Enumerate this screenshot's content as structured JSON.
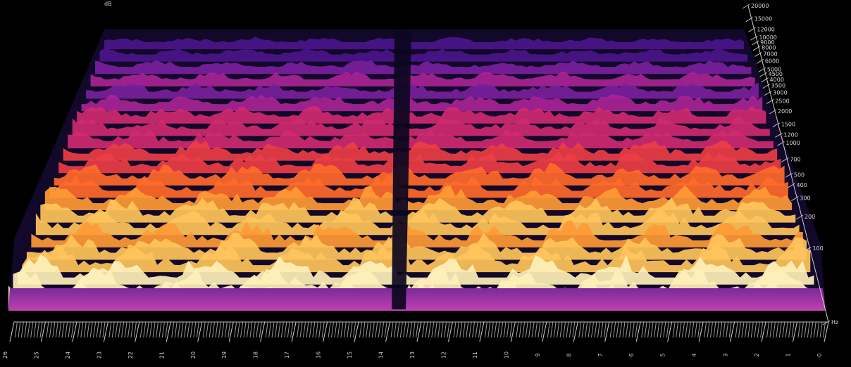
{
  "corner_mark": "dB",
  "chart_data": {
    "type": "heatmap",
    "title": "",
    "xlabel": "",
    "ylabel": "",
    "x_axis": {
      "direction": "decreasing left to right",
      "range": [
        0,
        26
      ],
      "tick_labels": [
        "26",
        "25",
        "24",
        "23",
        "22",
        "21",
        "20",
        "19",
        "18",
        "17",
        "16",
        "15",
        "14",
        "13",
        "12",
        "11",
        "10",
        "9",
        "8",
        "7",
        "6",
        "5",
        "4",
        "3",
        "2",
        "1",
        "0"
      ]
    },
    "y_axis": {
      "unit": "Hz",
      "scale": "log",
      "range": [
        20,
        20000
      ],
      "tick_labels": [
        "Hz",
        "100",
        "200",
        "300",
        "400",
        "500",
        "700",
        "1000",
        "1200",
        "1500",
        "2000",
        "2500",
        "3000",
        "3500",
        "4000",
        "4500",
        "5000",
        "6000",
        "7000",
        "8000",
        "9000",
        "10000",
        "12000",
        "15000",
        "20000"
      ]
    },
    "colormap": "black-purple-red-orange-yellow-white (intensity)",
    "background": "#000000"
  }
}
